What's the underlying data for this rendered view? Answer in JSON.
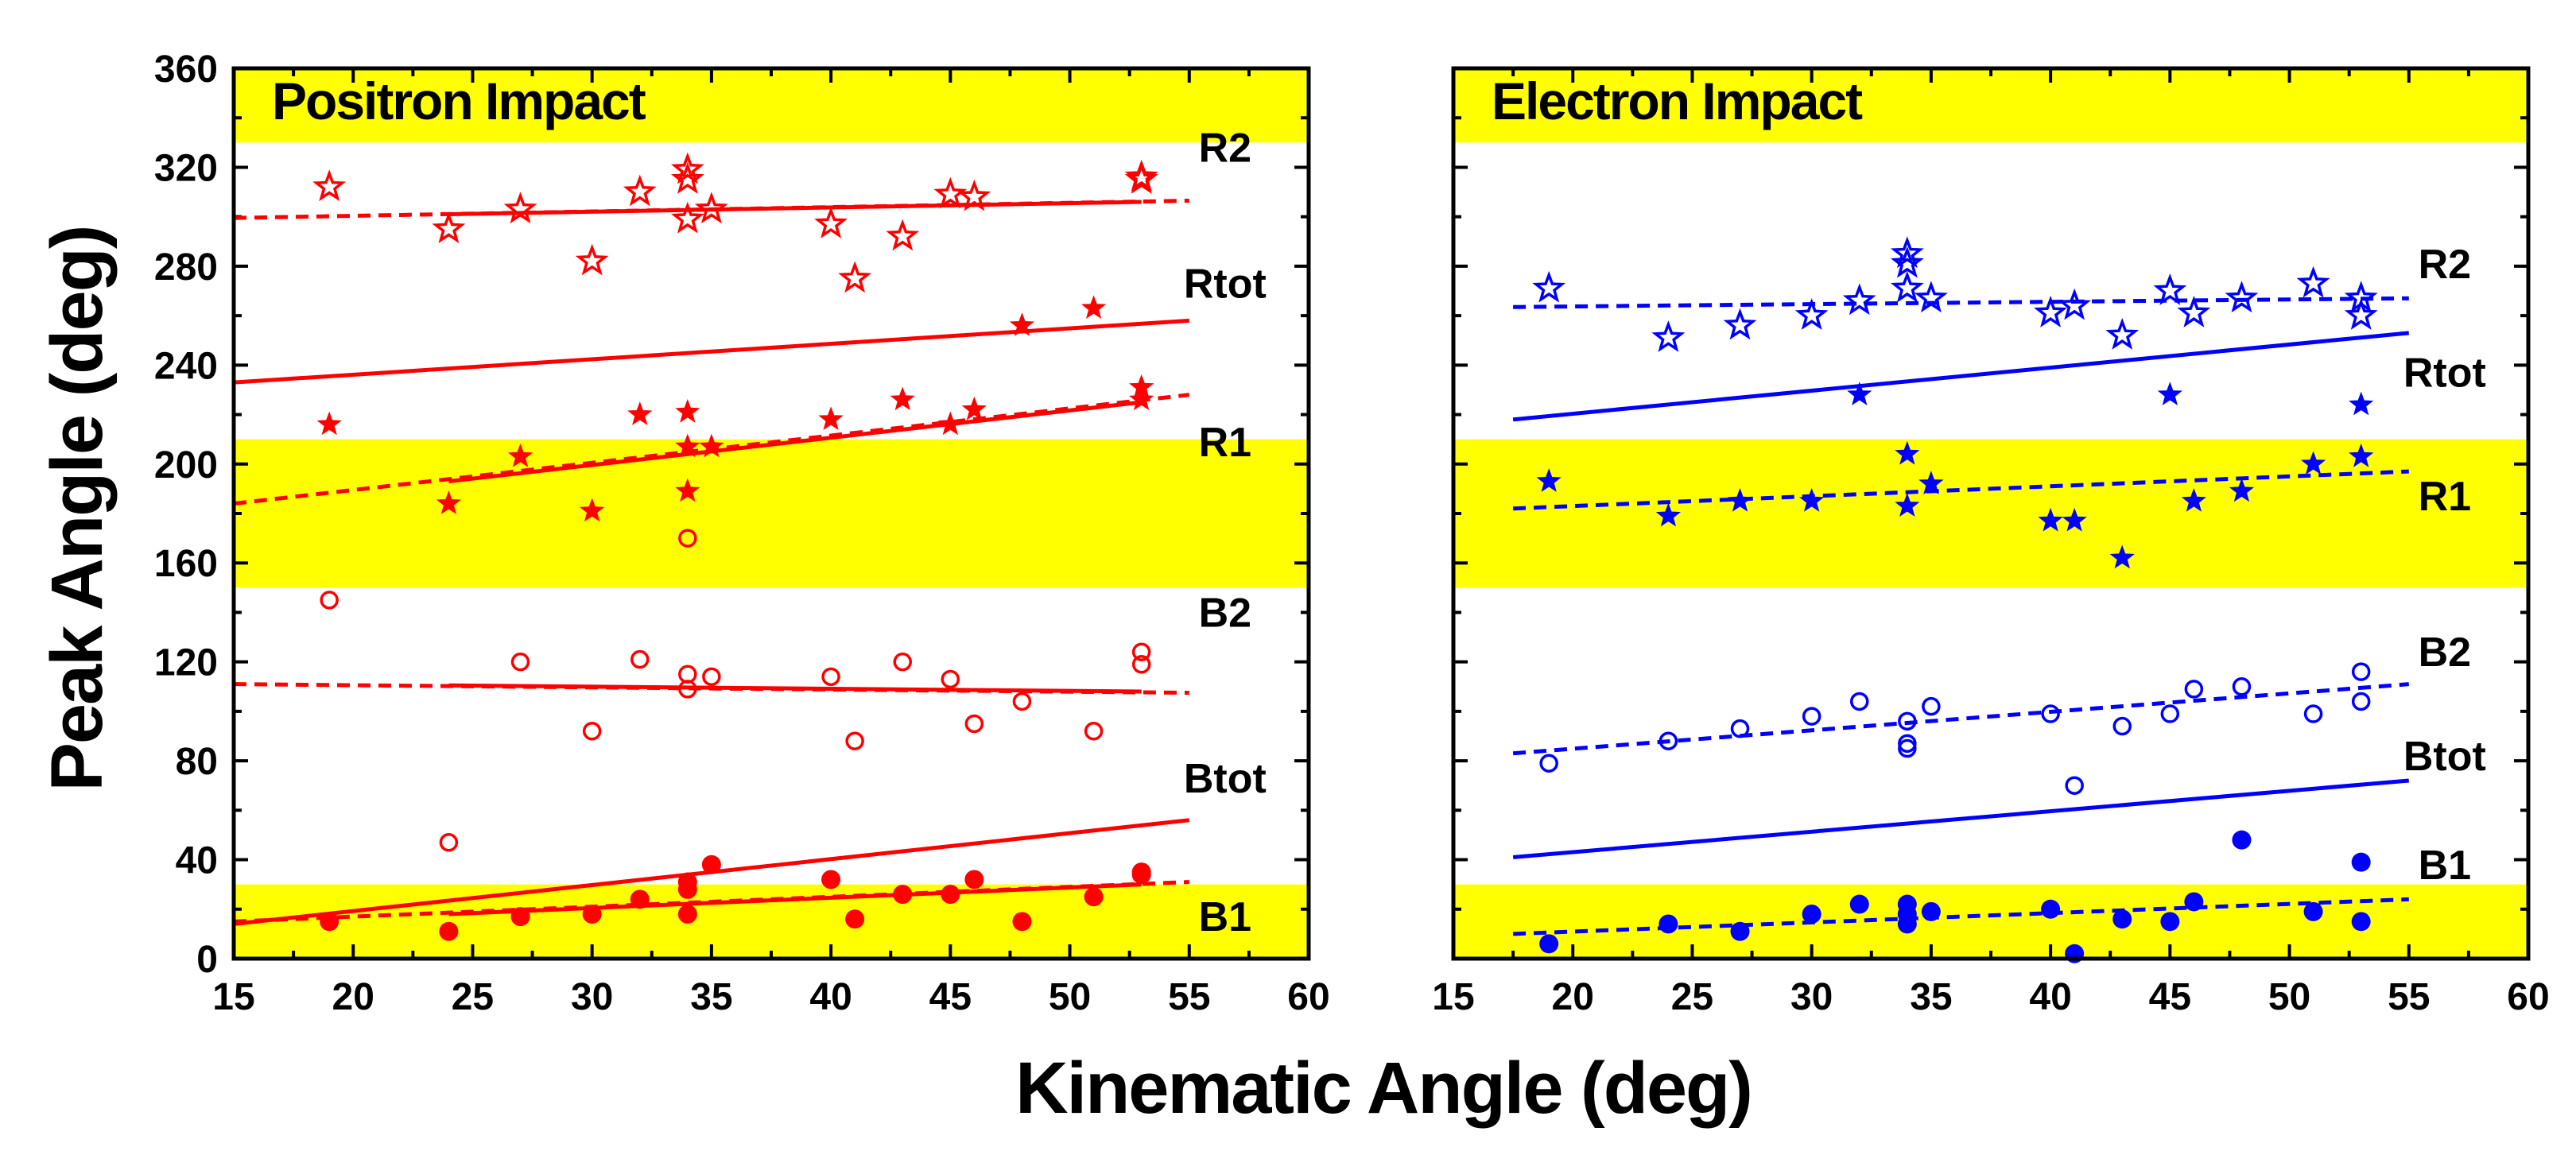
{
  "chart_data": {
    "type": "scatter",
    "ylabel": "Peak Angle (deg)",
    "xlabel": "Kinematic Angle (deg)",
    "xlim": [
      15,
      60
    ],
    "ylim": [
      0,
      360
    ],
    "x_ticks": [
      15,
      20,
      25,
      30,
      35,
      40,
      45,
      50,
      55,
      60
    ],
    "y_ticks": [
      0,
      40,
      80,
      120,
      160,
      200,
      240,
      280,
      320,
      360
    ],
    "band_color": "#ffff00",
    "panels": [
      {
        "title": "Positron Impact",
        "color": "#ff0000",
        "bands": [
          [
            0,
            30
          ],
          [
            150,
            210
          ],
          [
            330,
            360
          ]
        ],
        "labels": [
          {
            "text": "R2",
            "x": 56.5,
            "y": 328
          },
          {
            "text": "Rtot",
            "x": 56.5,
            "y": 273
          },
          {
            "text": "R1",
            "x": 56.5,
            "y": 209
          },
          {
            "text": "B2",
            "x": 56.5,
            "y": 140
          },
          {
            "text": "Btot",
            "x": 56.5,
            "y": 73
          },
          {
            "text": "B1",
            "x": 56.5,
            "y": 17
          }
        ],
        "series": [
          {
            "name": "R2",
            "marker": "star-open",
            "x": [
              19,
              24,
              27,
              30,
              32,
              34,
              34,
              34,
              35,
              40,
              41,
              43,
              45,
              46,
              53,
              53
            ],
            "y": [
              312,
              295,
              303,
              282,
              310,
              319,
              315,
              299,
              303,
              297,
              275,
              292,
              309,
              308,
              316,
              315
            ]
          },
          {
            "name": "R1",
            "marker": "star-filled",
            "x": [
              19,
              24,
              27,
              30,
              32,
              34,
              34,
              34,
              35,
              40,
              43,
              45,
              46,
              48,
              51,
              53,
              53
            ],
            "y": [
              216,
              184,
              203,
              181,
              220,
              221,
              207,
              189,
              207,
              218,
              226,
              216,
              222,
              256,
              263,
              231,
              226
            ]
          },
          {
            "name": "B2",
            "marker": "circle-open",
            "x": [
              19,
              24,
              27,
              30,
              32,
              34,
              34,
              34,
              35,
              40,
              41,
              43,
              45,
              46,
              48,
              51,
              53,
              53
            ],
            "y": [
              145,
              47,
              120,
              92,
              121,
              170,
              115,
              109,
              114,
              114,
              88,
              120,
              113,
              95,
              104,
              92,
              124,
              119
            ]
          },
          {
            "name": "B1",
            "marker": "circle-filled",
            "x": [
              19,
              24,
              27,
              30,
              32,
              34,
              34,
              34,
              35,
              40,
              41,
              43,
              45,
              46,
              48,
              51,
              53,
              53
            ],
            "y": [
              15,
              11,
              17,
              18,
              24,
              31,
              28,
              18,
              38,
              32,
              16,
              26,
              26,
              32,
              15,
              25,
              35,
              34
            ]
          }
        ],
        "fits": [
          {
            "name": "R2 fit",
            "style": "solid",
            "x": [
              24,
              53
            ],
            "y": [
              301,
              306
            ]
          },
          {
            "name": "R2 fit ext",
            "style": "dashed",
            "x": [
              15,
              55
            ],
            "y": [
              299.5,
              306.5
            ]
          },
          {
            "name": "Rtot",
            "style": "solid",
            "x": [
              15,
              55
            ],
            "y": [
              233,
              258
            ]
          },
          {
            "name": "R1 fit",
            "style": "solid",
            "x": [
              24,
              53
            ],
            "y": [
              193,
              225
            ]
          },
          {
            "name": "R1 fit ext",
            "style": "dashed",
            "x": [
              15,
              55
            ],
            "y": [
              184,
              228
            ]
          },
          {
            "name": "B2 fit",
            "style": "solid",
            "x": [
              24,
              53
            ],
            "y": [
              110.5,
              108
            ]
          },
          {
            "name": "B2 fit ext",
            "style": "dashed",
            "x": [
              15,
              55
            ],
            "y": [
              111,
              107.5
            ]
          },
          {
            "name": "Btot",
            "style": "solid",
            "x": [
              15,
              55
            ],
            "y": [
              14,
              56
            ]
          },
          {
            "name": "B1 fit",
            "style": "solid",
            "x": [
              24,
              53
            ],
            "y": [
              18,
              30
            ]
          },
          {
            "name": "B1 fit ext",
            "style": "dashed",
            "x": [
              15,
              55
            ],
            "y": [
              15,
              31
            ]
          }
        ]
      },
      {
        "title": "Electron Impact",
        "color": "#0000ff",
        "bands": [
          [
            0,
            30
          ],
          [
            150,
            210
          ],
          [
            330,
            360
          ]
        ],
        "labels": [
          {
            "text": "R2",
            "x": 56.5,
            "y": 281
          },
          {
            "text": "Rtot",
            "x": 56.5,
            "y": 237
          },
          {
            "text": "R1",
            "x": 56.5,
            "y": 187
          },
          {
            "text": "B2",
            "x": 56.5,
            "y": 124
          },
          {
            "text": "Btot",
            "x": 56.5,
            "y": 82
          },
          {
            "text": "B1",
            "x": 56.5,
            "y": 38
          }
        ],
        "series": [
          {
            "name": "R2",
            "marker": "star-open",
            "x": [
              19,
              24,
              27,
              30,
              32,
              34,
              34,
              34,
              35,
              40,
              41,
              43,
              45,
              46,
              48,
              51,
              53,
              53
            ],
            "y": [
              271,
              251,
              256,
              260,
              266,
              285,
              281,
              271,
              267,
              261,
              264,
              252,
              270,
              261,
              267,
              273,
              267,
              260
            ]
          },
          {
            "name": "R1",
            "marker": "star-filled",
            "x": [
              19,
              24,
              27,
              30,
              32,
              34,
              34,
              35,
              40,
              41,
              43,
              45,
              46,
              48,
              51,
              53,
              53
            ],
            "y": [
              193,
              179,
              185,
              185,
              228,
              204,
              183,
              192,
              177,
              177,
              162,
              228,
              185,
              189,
              200,
              203,
              224
            ]
          },
          {
            "name": "B2",
            "marker": "circle-open",
            "x": [
              19,
              24,
              27,
              30,
              32,
              34,
              34,
              34,
              35,
              40,
              41,
              43,
              45,
              46,
              48,
              51,
              53,
              53
            ],
            "y": [
              79,
              88,
              93,
              98,
              104,
              96,
              87,
              85,
              102,
              99,
              70,
              94,
              99,
              109,
              110,
              99,
              116,
              104
            ]
          },
          {
            "name": "B1",
            "marker": "circle-filled",
            "x": [
              19,
              24,
              27,
              30,
              32,
              34,
              34,
              34,
              35,
              40,
              41,
              43,
              45,
              46,
              48,
              51,
              53,
              53
            ],
            "y": [
              6,
              14,
              11,
              18,
              22,
              22,
              18,
              14,
              19,
              20,
              2,
              16,
              15,
              23,
              48,
              19,
              15,
              39
            ]
          }
        ],
        "fits": [
          {
            "name": "R2 fit",
            "style": "dashed",
            "x": [
              17.5,
              55
            ],
            "y": [
              263.5,
              267
            ]
          },
          {
            "name": "Rtot",
            "style": "solid",
            "x": [
              17.5,
              55
            ],
            "y": [
              218,
              253
            ]
          },
          {
            "name": "R1 fit",
            "style": "dashed",
            "x": [
              17.5,
              55
            ],
            "y": [
              182,
              197
            ]
          },
          {
            "name": "B2 fit",
            "style": "dashed",
            "x": [
              17.5,
              55
            ],
            "y": [
              83,
              111
            ]
          },
          {
            "name": "Btot",
            "style": "solid",
            "x": [
              17.5,
              55
            ],
            "y": [
              41,
              72
            ]
          },
          {
            "name": "B1 fit",
            "style": "dashed",
            "x": [
              17.5,
              55
            ],
            "y": [
              10,
              24
            ]
          }
        ]
      }
    ]
  }
}
